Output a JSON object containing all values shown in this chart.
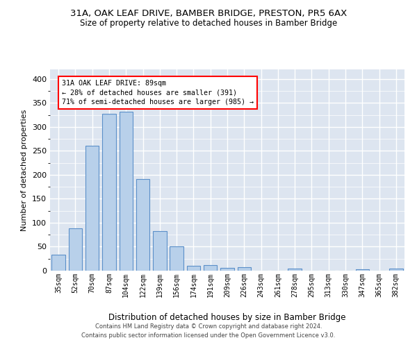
{
  "title": "31A, OAK LEAF DRIVE, BAMBER BRIDGE, PRESTON, PR5 6AX",
  "subtitle": "Size of property relative to detached houses in Bamber Bridge",
  "xlabel": "Distribution of detached houses by size in Bamber Bridge",
  "ylabel": "Number of detached properties",
  "bar_color": "#b8d0ea",
  "bar_edge_color": "#5b8fc9",
  "background_color": "#dde5f0",
  "grid_color": "#ffffff",
  "categories": [
    "35sqm",
    "52sqm",
    "70sqm",
    "87sqm",
    "104sqm",
    "122sqm",
    "139sqm",
    "156sqm",
    "174sqm",
    "191sqm",
    "209sqm",
    "226sqm",
    "243sqm",
    "261sqm",
    "278sqm",
    "295sqm",
    "313sqm",
    "330sqm",
    "347sqm",
    "365sqm",
    "382sqm"
  ],
  "values": [
    33,
    88,
    260,
    327,
    332,
    191,
    83,
    51,
    10,
    12,
    6,
    7,
    0,
    0,
    4,
    0,
    0,
    0,
    3,
    0,
    4
  ],
  "ylim": [
    0,
    420
  ],
  "yticks": [
    0,
    50,
    100,
    150,
    200,
    250,
    300,
    350,
    400
  ],
  "annotation_text": "31A OAK LEAF DRIVE: 89sqm\n← 28% of detached houses are smaller (391)\n71% of semi-detached houses are larger (985) →",
  "footer1": "Contains HM Land Registry data © Crown copyright and database right 2024.",
  "footer2": "Contains public sector information licensed under the Open Government Licence v3.0."
}
